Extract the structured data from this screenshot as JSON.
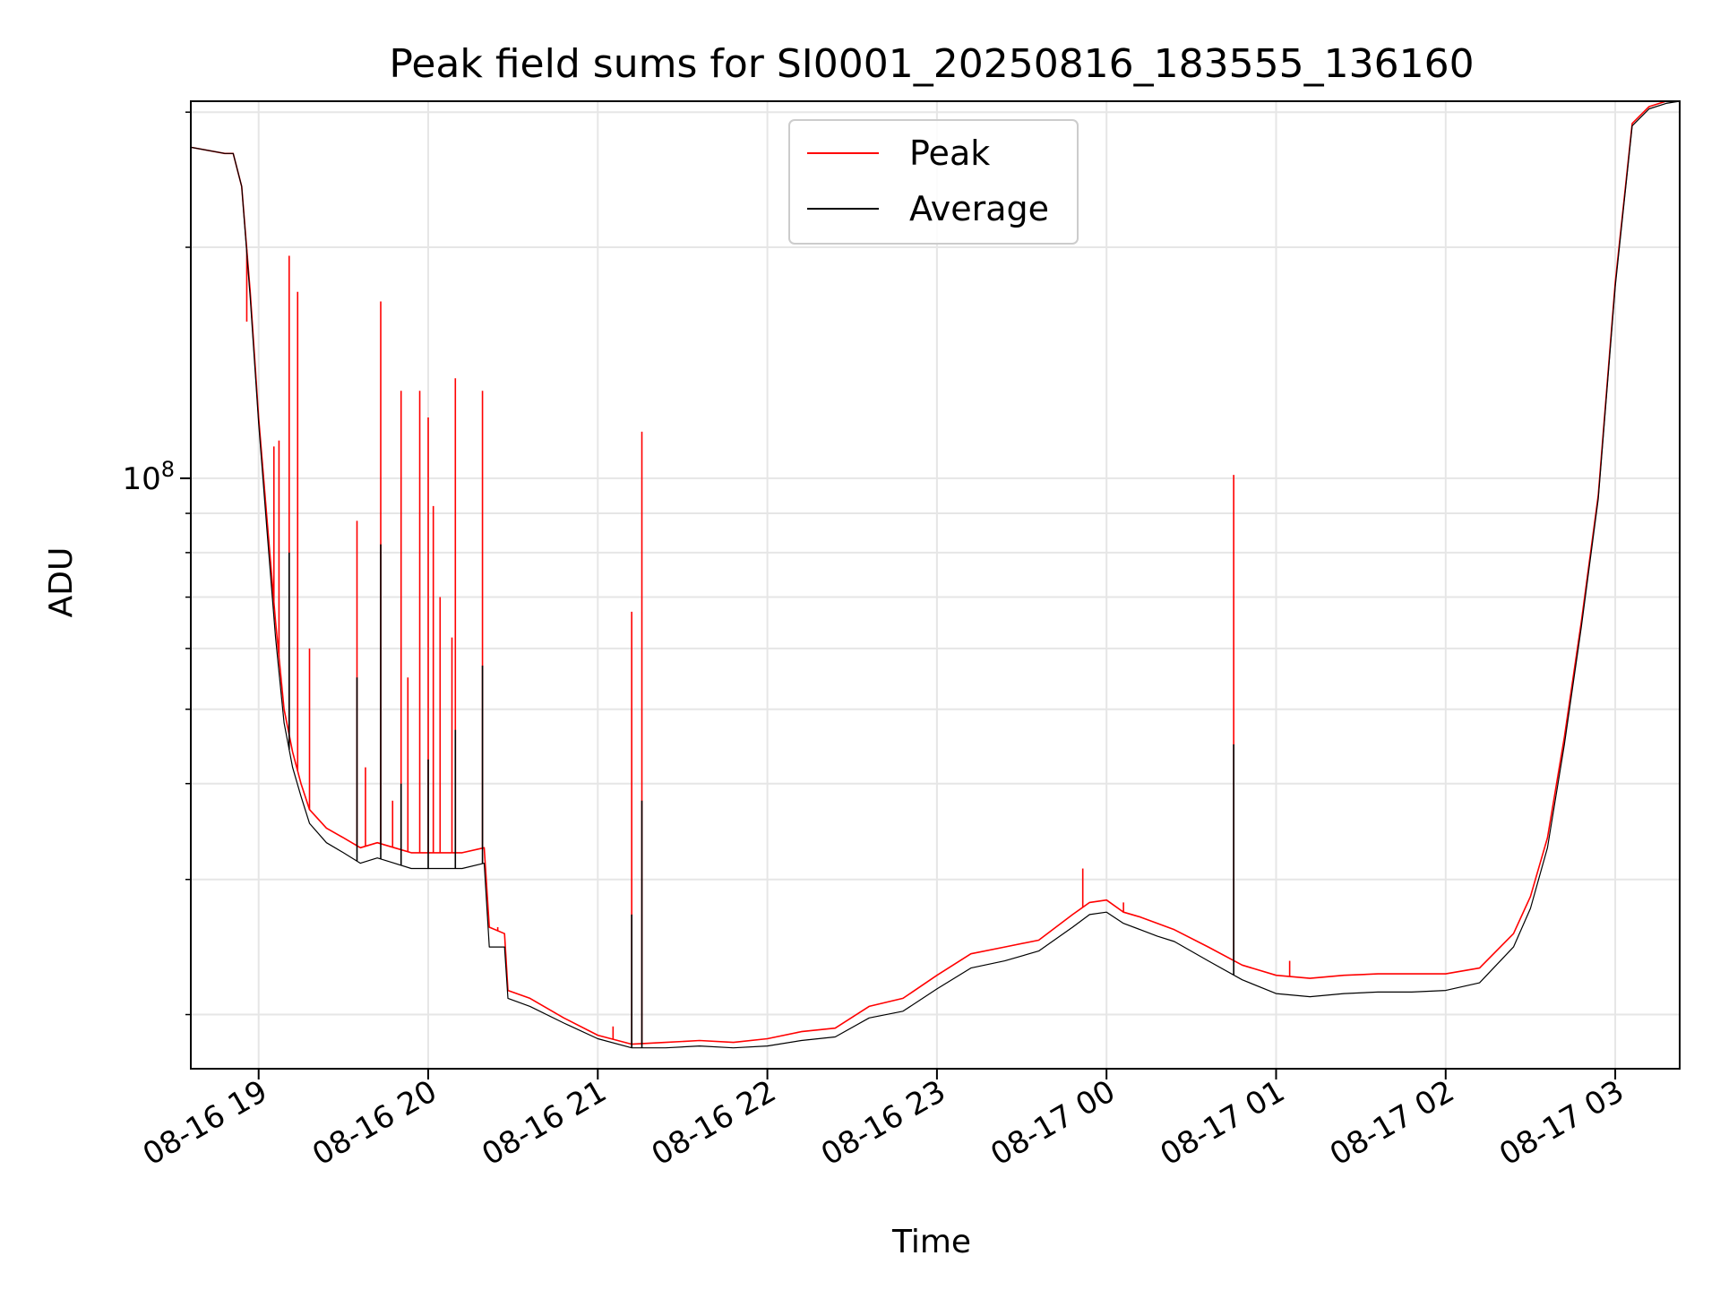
{
  "chart_data": {
    "type": "line",
    "title": "Peak field sums for SI0001_20250816_183555_136160",
    "xlabel": "Time",
    "ylabel": "ADU",
    "yscale": "log",
    "grid": true,
    "legend_position": "top-center",
    "x_tick_labels": [
      "08-16 19",
      "08-16 20",
      "08-16 21",
      "08-16 22",
      "08-16 23",
      "08-17 00",
      "08-17 01",
      "08-17 02",
      "08-17 03"
    ],
    "x_tick_hours": [
      19,
      20,
      21,
      22,
      23,
      24,
      25,
      26,
      27
    ],
    "xlim_hours": [
      18.6,
      27.38
    ],
    "ylim": [
      17000000,
      310000000
    ],
    "y_major_ticks": [
      {
        "value": 100000000,
        "base": "10",
        "exponent": "8"
      }
    ],
    "y_minor_ticks": [
      20000000,
      30000000,
      40000000,
      50000000,
      60000000,
      70000000,
      80000000,
      90000000,
      200000000,
      300000000
    ],
    "series": [
      {
        "name": "Peak",
        "color": "#ff0000",
        "x_hours": [
          18.6,
          18.8,
          18.85,
          18.9,
          18.95,
          19.0,
          19.05,
          19.1,
          19.15,
          19.2,
          19.25,
          19.3,
          19.4,
          19.5,
          19.6,
          19.7,
          19.8,
          19.9,
          20.0,
          20.1,
          20.2,
          20.33,
          20.36,
          20.45,
          20.47,
          20.6,
          20.8,
          21.0,
          21.2,
          21.4,
          21.6,
          21.8,
          22.0,
          22.2,
          22.4,
          22.6,
          22.8,
          23.0,
          23.2,
          23.4,
          23.6,
          23.8,
          23.9,
          24.0,
          24.1,
          24.2,
          24.3,
          24.4,
          24.6,
          24.8,
          25.0,
          25.2,
          25.4,
          25.6,
          25.8,
          26.0,
          26.2,
          26.4,
          26.5,
          26.6,
          26.7,
          26.8,
          26.9,
          27.0,
          27.1,
          27.2,
          27.3,
          27.38
        ],
        "values": [
          270000000,
          265000000,
          265000000,
          240000000,
          175000000,
          120000000,
          88000000,
          65000000,
          50000000,
          44000000,
          40000000,
          37000000,
          35000000,
          34000000,
          33000000,
          33500000,
          33000000,
          32500000,
          32500000,
          32500000,
          32500000,
          33000000,
          26000000,
          25500000,
          21500000,
          21000000,
          19800000,
          18800000,
          18300000,
          18400000,
          18500000,
          18400000,
          18600000,
          19000000,
          19200000,
          20500000,
          21000000,
          22500000,
          24000000,
          24500000,
          25000000,
          27000000,
          28000000,
          28200000,
          27200000,
          26800000,
          26300000,
          25800000,
          24500000,
          23200000,
          22500000,
          22300000,
          22500000,
          22600000,
          22600000,
          22600000,
          23000000,
          25500000,
          28500000,
          34000000,
          46000000,
          65000000,
          95000000,
          180000000,
          290000000,
          305000000,
          310000000,
          310000000
        ],
        "spikes": [
          {
            "x_hours": 18.93,
            "value": 160000000
          },
          {
            "x_hours": 19.09,
            "value": 110000000
          },
          {
            "x_hours": 19.12,
            "value": 112000000
          },
          {
            "x_hours": 19.18,
            "value": 195000000
          },
          {
            "x_hours": 19.23,
            "value": 175000000
          },
          {
            "x_hours": 19.3,
            "value": 60000000
          },
          {
            "x_hours": 19.58,
            "value": 88000000
          },
          {
            "x_hours": 19.63,
            "value": 42000000
          },
          {
            "x_hours": 19.72,
            "value": 170000000
          },
          {
            "x_hours": 19.79,
            "value": 38000000
          },
          {
            "x_hours": 19.84,
            "value": 130000000
          },
          {
            "x_hours": 19.88,
            "value": 55000000
          },
          {
            "x_hours": 19.95,
            "value": 130000000
          },
          {
            "x_hours": 20.0,
            "value": 120000000
          },
          {
            "x_hours": 20.03,
            "value": 92000000
          },
          {
            "x_hours": 20.07,
            "value": 70000000
          },
          {
            "x_hours": 20.14,
            "value": 62000000
          },
          {
            "x_hours": 20.16,
            "value": 135000000
          },
          {
            "x_hours": 20.32,
            "value": 130000000
          },
          {
            "x_hours": 20.41,
            "value": 26000000
          },
          {
            "x_hours": 20.77,
            "value": 20000000
          },
          {
            "x_hours": 21.09,
            "value": 19300000
          },
          {
            "x_hours": 21.2,
            "value": 67000000
          },
          {
            "x_hours": 21.26,
            "value": 115000000
          },
          {
            "x_hours": 23.86,
            "value": 31000000
          },
          {
            "x_hours": 24.1,
            "value": 28000000
          },
          {
            "x_hours": 24.75,
            "value": 101000000
          },
          {
            "x_hours": 25.08,
            "value": 23500000
          }
        ]
      },
      {
        "name": "Average",
        "color": "#000000",
        "x_hours": [
          18.6,
          18.8,
          18.85,
          18.9,
          18.95,
          19.0,
          19.05,
          19.1,
          19.15,
          19.2,
          19.25,
          19.3,
          19.4,
          19.5,
          19.6,
          19.7,
          19.8,
          19.9,
          20.0,
          20.1,
          20.2,
          20.33,
          20.36,
          20.45,
          20.47,
          20.6,
          20.8,
          21.0,
          21.2,
          21.4,
          21.6,
          21.8,
          22.0,
          22.2,
          22.4,
          22.6,
          22.8,
          23.0,
          23.2,
          23.4,
          23.6,
          23.8,
          23.9,
          24.0,
          24.1,
          24.2,
          24.3,
          24.4,
          24.6,
          24.8,
          25.0,
          25.2,
          25.4,
          25.6,
          25.8,
          26.0,
          26.2,
          26.4,
          26.5,
          26.6,
          26.7,
          26.8,
          26.9,
          27.0,
          27.1,
          27.2,
          27.3,
          27.38
        ],
        "values": [
          270000000,
          265000000,
          265000000,
          240000000,
          172000000,
          118000000,
          85000000,
          62000000,
          48000000,
          42000000,
          38500000,
          35500000,
          33500000,
          32500000,
          31500000,
          32000000,
          31500000,
          31000000,
          31000000,
          31000000,
          31000000,
          31500000,
          24500000,
          24500000,
          21000000,
          20500000,
          19500000,
          18600000,
          18100000,
          18100000,
          18200000,
          18100000,
          18200000,
          18500000,
          18700000,
          19800000,
          20200000,
          21600000,
          23000000,
          23500000,
          24200000,
          26000000,
          27000000,
          27200000,
          26300000,
          25800000,
          25300000,
          24900000,
          23500000,
          22200000,
          21300000,
          21100000,
          21300000,
          21400000,
          21400000,
          21500000,
          22000000,
          24500000,
          27500000,
          33000000,
          45000000,
          64000000,
          94000000,
          178000000,
          288000000,
          303000000,
          308000000,
          310000000
        ],
        "spikes": [
          {
            "x_hours": 19.18,
            "value": 80000000
          },
          {
            "x_hours": 19.58,
            "value": 55000000
          },
          {
            "x_hours": 19.72,
            "value": 82000000
          },
          {
            "x_hours": 19.84,
            "value": 40000000
          },
          {
            "x_hours": 20.0,
            "value": 43000000
          },
          {
            "x_hours": 20.16,
            "value": 47000000
          },
          {
            "x_hours": 20.32,
            "value": 57000000
          },
          {
            "x_hours": 21.2,
            "value": 27000000
          },
          {
            "x_hours": 21.26,
            "value": 38000000
          },
          {
            "x_hours": 24.75,
            "value": 45000000
          }
        ]
      }
    ]
  }
}
